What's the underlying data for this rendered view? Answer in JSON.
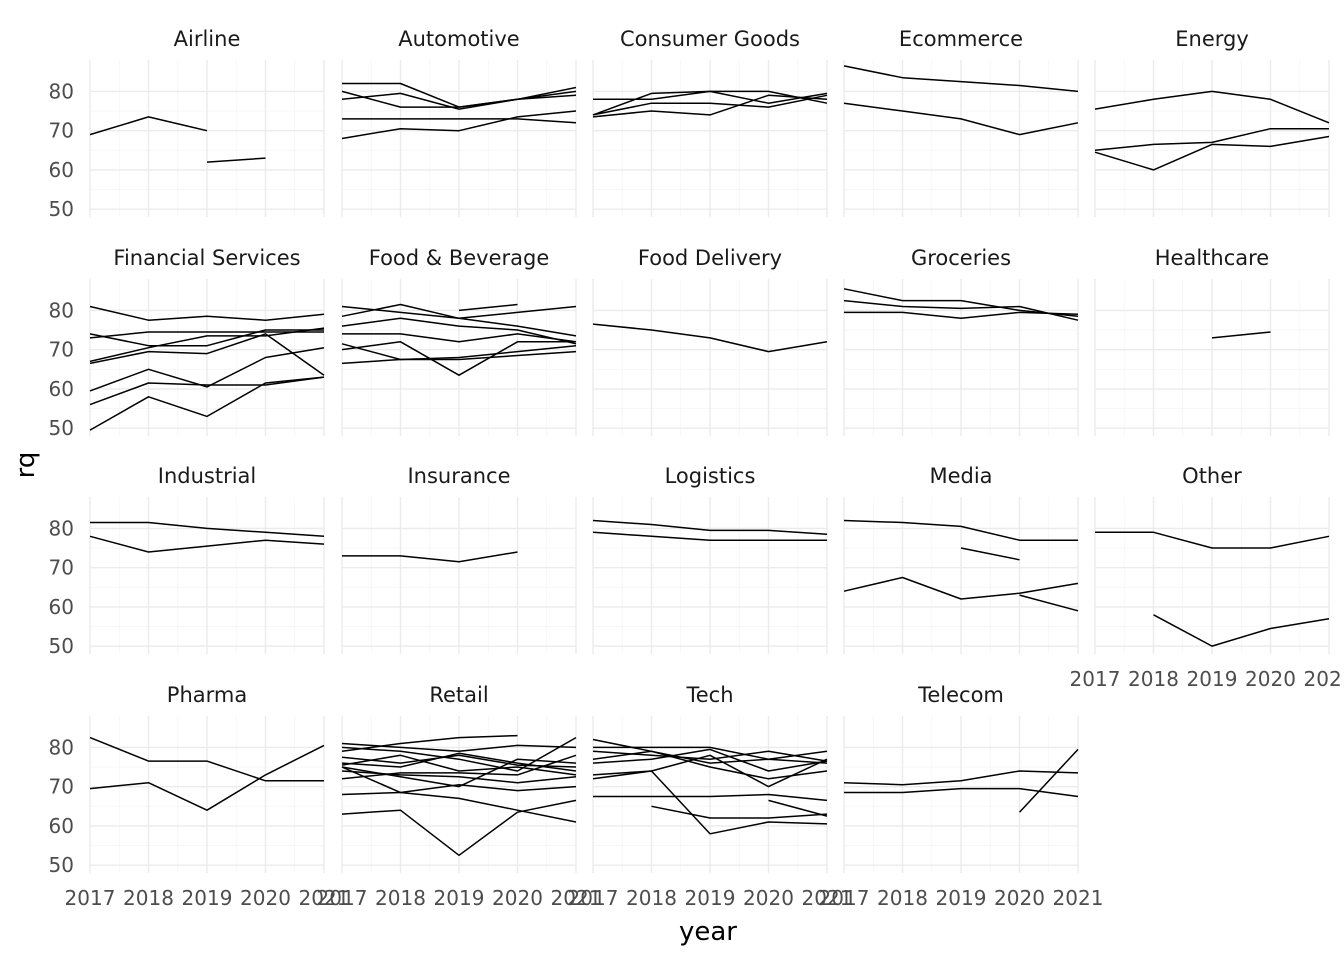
{
  "chart_data": {
    "type": "line",
    "faceted": true,
    "xlabel": "year",
    "ylabel": "rq",
    "x_ticks": [
      2017,
      2018,
      2019,
      2020,
      2021
    ],
    "y_ticks": [
      50,
      60,
      70,
      80
    ],
    "xlim": [
      2017,
      2021
    ],
    "ylim": [
      48,
      88
    ],
    "grid": true,
    "line_color": "#000000",
    "panels": [
      {
        "title": "Airline",
        "series": [
          {
            "values": [
              69,
              73.5,
              70,
              null,
              null
            ]
          },
          {
            "values": [
              null,
              null,
              62,
              63,
              null
            ]
          }
        ]
      },
      {
        "title": "Automotive",
        "series": [
          {
            "values": [
              82,
              82,
              76,
              78,
              79
            ]
          },
          {
            "values": [
              80,
              76,
              76,
              78,
              81
            ]
          },
          {
            "values": [
              78,
              79.5,
              75.5,
              78,
              80
            ]
          },
          {
            "values": [
              73,
              73,
              73,
              73,
              72
            ]
          },
          {
            "values": [
              68,
              70.5,
              70,
              73.5,
              75
            ]
          }
        ]
      },
      {
        "title": "Consumer Goods",
        "series": [
          {
            "values": [
              78,
              78,
              80,
              80,
              77
            ]
          },
          {
            "values": [
              74,
              79.5,
              80,
              77,
              79.5
            ]
          },
          {
            "values": [
              74,
              77,
              77,
              76,
              79
            ]
          },
          {
            "values": [
              73.5,
              75,
              74,
              79,
              78
            ]
          }
        ]
      },
      {
        "title": "Ecommerce",
        "series": [
          {
            "values": [
              86.5,
              83.5,
              82.5,
              81.5,
              80
            ]
          },
          {
            "values": [
              77,
              75,
              73,
              69,
              72
            ]
          }
        ]
      },
      {
        "title": "Energy",
        "series": [
          {
            "values": [
              75.5,
              78,
              80,
              78,
              72
            ]
          },
          {
            "values": [
              65,
              66.5,
              67,
              70.5,
              70.5
            ]
          },
          {
            "values": [
              64.5,
              60,
              66.5,
              66,
              68.5
            ]
          }
        ]
      },
      {
        "title": "Financial Services",
        "series": [
          {
            "values": [
              81,
              77.5,
              78.5,
              77.5,
              79
            ]
          },
          {
            "values": [
              74,
              71,
              71,
              75,
              75
            ]
          },
          {
            "values": [
              73,
              74.5,
              74.5,
              74.5,
              74.5
            ]
          },
          {
            "values": [
              67,
              70.5,
              73.5,
              73.5,
              75.5
            ]
          },
          {
            "values": [
              66.5,
              69.5,
              69,
              74,
              63.5
            ]
          },
          {
            "values": [
              59.5,
              65,
              60.5,
              68,
              70.5
            ]
          },
          {
            "values": [
              56,
              61.5,
              61,
              61,
              63
            ]
          },
          {
            "values": [
              49.5,
              58,
              53,
              61.5,
              63
            ]
          }
        ]
      },
      {
        "title": "Food & Beverage",
        "series": [
          {
            "values": [
              81,
              79.5,
              78,
              79.5,
              81
            ]
          },
          {
            "values": [
              78.5,
              81.5,
              78,
              76,
              73.5
            ]
          },
          {
            "values": [
              76,
              78,
              76,
              75,
              71.5
            ]
          },
          {
            "values": [
              74,
              74,
              72,
              74,
              72
            ]
          },
          {
            "values": [
              71.5,
              67.5,
              68,
              69.5,
              71
            ]
          },
          {
            "values": [
              70,
              72,
              63.5,
              72,
              72
            ]
          },
          {
            "values": [
              66.5,
              67.5,
              67.5,
              68.5,
              69.5
            ]
          },
          {
            "values": [
              null,
              null,
              80,
              81.5,
              null
            ]
          }
        ]
      },
      {
        "title": "Food Delivery",
        "series": [
          {
            "values": [
              76.5,
              75,
              73,
              69.5,
              72
            ]
          }
        ]
      },
      {
        "title": "Groceries",
        "series": [
          {
            "values": [
              85.5,
              82.5,
              82.5,
              80,
              78.5
            ]
          },
          {
            "values": [
              82.5,
              81,
              80.5,
              81,
              77.5
            ]
          },
          {
            "values": [
              79.5,
              79.5,
              78,
              79.5,
              79
            ]
          }
        ]
      },
      {
        "title": "Healthcare",
        "series": [
          {
            "values": [
              null,
              null,
              73,
              74.5,
              null
            ]
          }
        ]
      },
      {
        "title": "Industrial",
        "series": [
          {
            "values": [
              81.5,
              81.5,
              80,
              79,
              78
            ]
          },
          {
            "values": [
              78,
              74,
              75.5,
              77,
              76
            ]
          }
        ]
      },
      {
        "title": "Insurance",
        "series": [
          {
            "values": [
              73,
              73,
              71.5,
              74,
              null
            ]
          }
        ]
      },
      {
        "title": "Logistics",
        "series": [
          {
            "values": [
              82,
              81,
              79.5,
              79.5,
              78.5
            ]
          },
          {
            "values": [
              79,
              78,
              77,
              77,
              77
            ]
          }
        ]
      },
      {
        "title": "Media",
        "series": [
          {
            "values": [
              82,
              81.5,
              80.5,
              77,
              77
            ]
          },
          {
            "values": [
              64,
              67.5,
              62,
              63.5,
              66
            ]
          },
          {
            "values": [
              null,
              null,
              75,
              72,
              null
            ]
          },
          {
            "values": [
              null,
              null,
              null,
              63,
              59
            ]
          }
        ]
      },
      {
        "title": "Other",
        "series": [
          {
            "values": [
              79,
              79,
              75,
              75,
              78
            ]
          },
          {
            "values": [
              null,
              58,
              50,
              54.5,
              57
            ]
          }
        ]
      },
      {
        "title": "Pharma",
        "series": [
          {
            "values": [
              82.5,
              76.5,
              76.5,
              71.5,
              71.5
            ]
          },
          {
            "values": [
              69.5,
              71,
              64,
              73,
              80.5
            ]
          }
        ]
      },
      {
        "title": "Retail",
        "series": [
          {
            "values": [
              81,
              80,
              79,
              80.5,
              80
            ]
          },
          {
            "values": [
              80,
              79,
              77,
              74,
              82.5
            ]
          },
          {
            "values": [
              79,
              81,
              82.5,
              83,
              null
            ]
          },
          {
            "values": [
              77.5,
              76,
              78,
              75.5,
              75
            ]
          },
          {
            "values": [
              76,
              75,
              78.5,
              76,
              74
            ]
          },
          {
            "values": [
              75.5,
              78,
              74,
              75,
              73
            ]
          },
          {
            "values": [
              75,
              72.5,
              70,
              77,
              76
            ]
          },
          {
            "values": [
              74,
              73,
              72.5,
              71,
              72.5
            ]
          },
          {
            "values": [
              72,
              73.5,
              73.5,
              73,
              78
            ]
          },
          {
            "values": [
              68,
              68.5,
              70.5,
              69,
              70
            ]
          },
          {
            "values": [
              75,
              68.5,
              67,
              64,
              61
            ]
          },
          {
            "values": [
              63,
              64,
              52.5,
              63.5,
              66.5
            ]
          }
        ]
      },
      {
        "title": "Tech",
        "series": [
          {
            "values": [
              82,
              79,
              76,
              77,
              76
            ]
          },
          {
            "values": [
              80,
              80,
              80,
              77,
              79
            ]
          },
          {
            "values": [
              79,
              78,
              77,
              79,
              76.5
            ]
          },
          {
            "values": [
              77,
              79,
              75,
              72,
              74
            ]
          },
          {
            "values": [
              76,
              77,
              79.5,
              74,
              76.5
            ]
          },
          {
            "values": [
              73,
              74,
              58,
              61,
              60.5
            ]
          },
          {
            "values": [
              72,
              74,
              78,
              70,
              77
            ]
          },
          {
            "values": [
              67.5,
              67.5,
              67.5,
              68,
              66.5
            ]
          },
          {
            "values": [
              null,
              65,
              62,
              62,
              63
            ]
          },
          {
            "values": [
              null,
              null,
              null,
              66.5,
              62.5
            ]
          }
        ]
      },
      {
        "title": "Telecom",
        "series": [
          {
            "values": [
              71,
              70.5,
              71.5,
              74,
              73.5
            ]
          },
          {
            "values": [
              68.5,
              68.5,
              69.5,
              69.5,
              67.5
            ]
          },
          {
            "values": [
              null,
              null,
              null,
              63.5,
              79.5
            ]
          }
        ]
      }
    ]
  }
}
